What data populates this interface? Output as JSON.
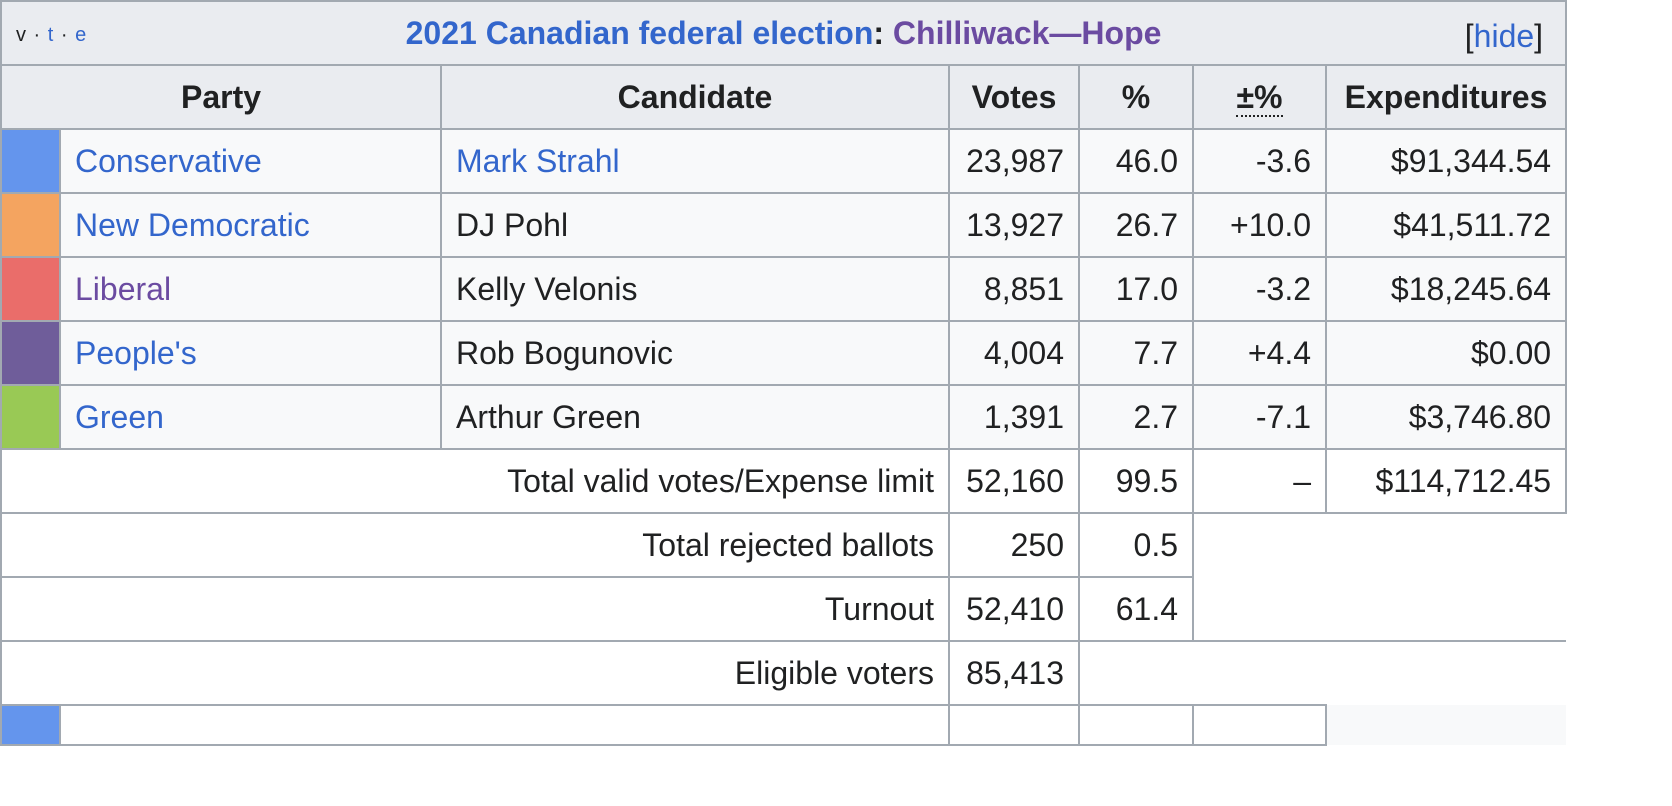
{
  "caption": {
    "vte_v": "v",
    "vte_t": "t",
    "vte_e": "e",
    "title_link": "2021 Canadian federal election",
    "colon": ":",
    "riding": "Chilliwack—Hope",
    "hide_open": "[",
    "hide_label": "hide",
    "hide_close": "]"
  },
  "headers": {
    "party": "Party",
    "candidate": "Candidate",
    "votes": "Votes",
    "percent": "%",
    "change": "±%",
    "expenditures": "Expenditures"
  },
  "rows": [
    {
      "color": "#6495ED",
      "party": "Conservative",
      "candidate": "Mark Strahl",
      "votes": "23,987",
      "percent": "46.0",
      "change": "-3.6",
      "expenditures": "$91,344.54"
    },
    {
      "color": "#F4A460",
      "party": "New Democratic",
      "candidate": "DJ Pohl",
      "votes": "13,927",
      "percent": "26.7",
      "change": "+10.0",
      "expenditures": "$41,511.72"
    },
    {
      "color": "#EA6D6A",
      "party": "Liberal",
      "candidate": "Kelly Velonis",
      "votes": "8,851",
      "percent": "17.0",
      "change": "-3.2",
      "expenditures": "$18,245.64"
    },
    {
      "color": "#6F5D9A",
      "party": "People's",
      "candidate": "Rob Bogunovic",
      "votes": "4,004",
      "percent": "7.7",
      "change": "+4.4",
      "expenditures": "$0.00"
    },
    {
      "color": "#99C955",
      "party": "Green",
      "candidate": "Arthur Green",
      "votes": "1,391",
      "percent": "2.7",
      "change": "-7.1",
      "expenditures": "$3,746.80"
    }
  ],
  "totals": {
    "valid_label": "Total valid votes/Expense limit",
    "valid_votes": "52,160",
    "valid_pct": "99.5",
    "valid_change": "–",
    "valid_exp": "$114,712.45",
    "rejected_label": "Total rejected ballots",
    "rejected_votes": "250",
    "rejected_pct": "0.5",
    "turnout_label": "Turnout",
    "turnout_votes": "52,410",
    "turnout_pct": "61.4",
    "eligible_label": "Eligible voters",
    "eligible_votes": "85,413"
  },
  "partial_row_color": "#6495ED"
}
